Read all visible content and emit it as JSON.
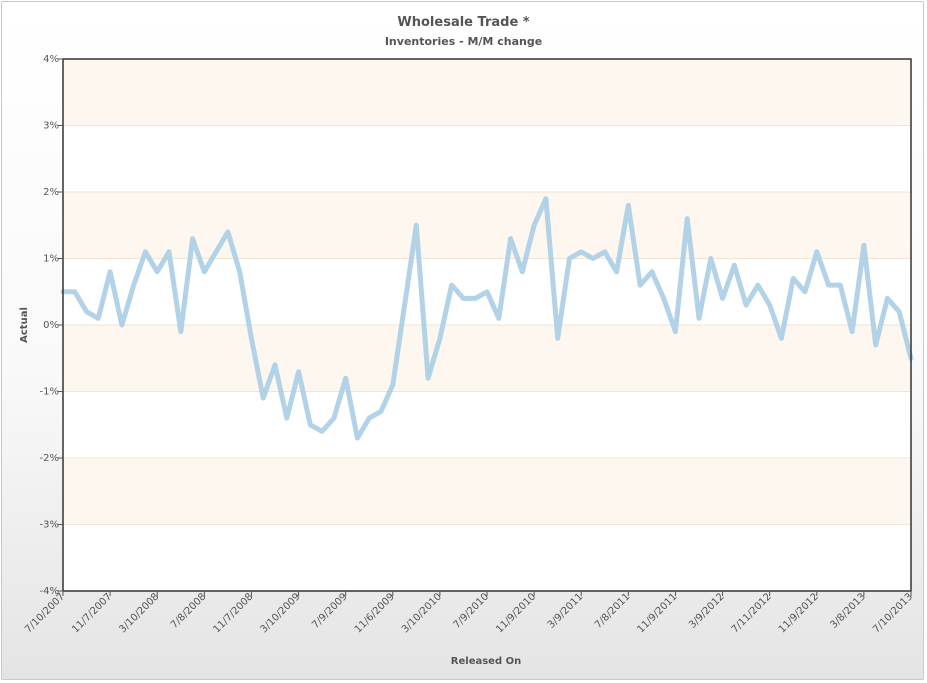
{
  "chart_data": {
    "type": "line",
    "title": "Wholesale Trade *",
    "subtitle": "Inventories - M/M change",
    "xlabel": "Released On",
    "ylabel": "Actual",
    "ylim": [
      -4,
      4
    ],
    "y_ticks": [
      "4%",
      "3%",
      "2%",
      "1%",
      "0%",
      "-1%",
      "-2%",
      "-3%",
      "-4%"
    ],
    "x_tick_labels": [
      "7/10/2007",
      "11/7/2007",
      "3/10/2008",
      "7/8/2008",
      "11/7/2008",
      "3/10/2009",
      "7/9/2009",
      "11/6/2009",
      "3/10/2010",
      "7/9/2010",
      "11/9/2010",
      "3/9/2011",
      "7/8/2011",
      "11/9/2011",
      "3/9/2012",
      "7/11/2012",
      "11/9/2012",
      "3/8/2013",
      "7/10/2013"
    ],
    "grid": true,
    "series": [
      {
        "color": "#aacde5",
        "values": [
          0.5,
          0.5,
          0.2,
          0.1,
          0.8,
          0.0,
          0.6,
          1.1,
          0.8,
          1.1,
          -0.1,
          1.3,
          0.8,
          1.1,
          1.4,
          0.8,
          -0.2,
          -1.1,
          -0.6,
          -1.4,
          -0.7,
          -1.5,
          -1.6,
          -1.4,
          -0.8,
          -1.7,
          -1.4,
          -1.3,
          -0.9,
          0.3,
          1.5,
          -0.8,
          -0.2,
          0.6,
          0.4,
          0.4,
          0.5,
          0.1,
          1.3,
          0.8,
          1.5,
          1.9,
          -0.2,
          1.0,
          1.1,
          1.0,
          1.1,
          0.8,
          1.8,
          0.6,
          0.8,
          0.4,
          -0.1,
          1.6,
          0.1,
          1.0,
          0.4,
          0.9,
          0.3,
          0.6,
          0.3,
          -0.2,
          0.7,
          0.5,
          1.1,
          0.6,
          0.6,
          -0.1,
          1.2,
          -0.3,
          0.4,
          0.2,
          -0.5
        ]
      }
    ],
    "band_colors": [
      "#fdf7ef",
      "#ffffff"
    ]
  }
}
